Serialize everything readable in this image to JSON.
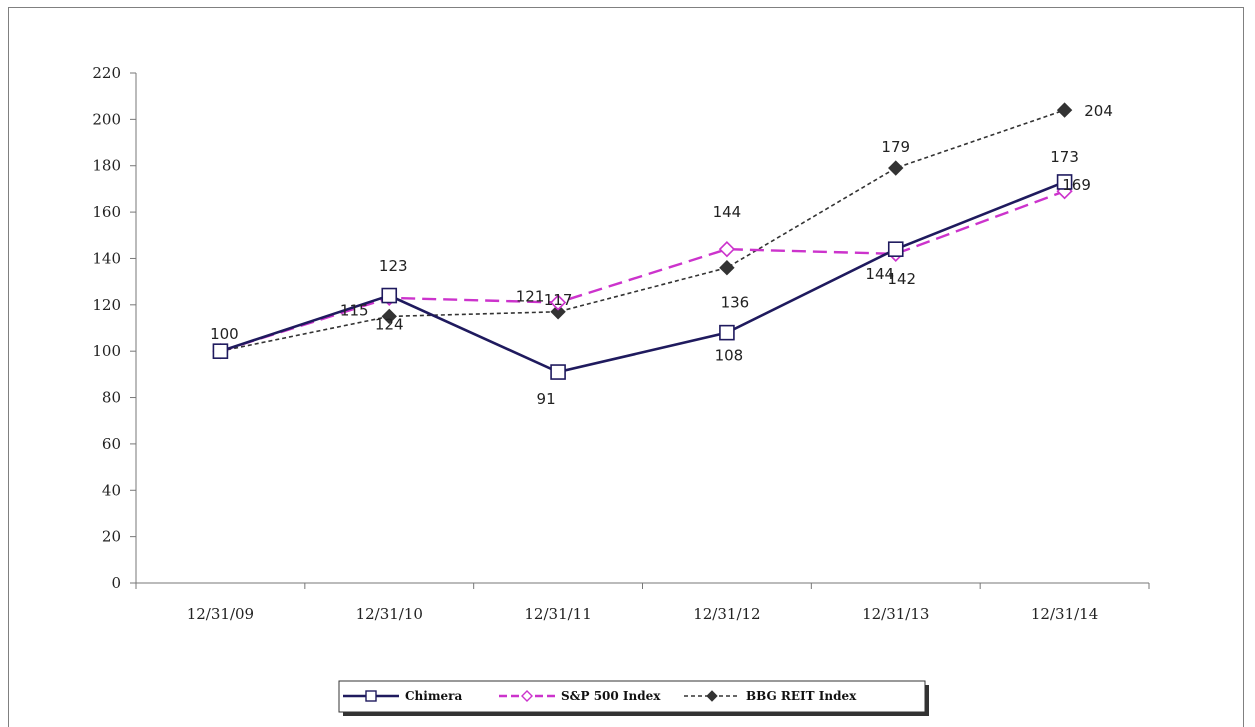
{
  "chart_data": {
    "type": "line",
    "title": "",
    "xlabel": "",
    "ylabel": "",
    "categories": [
      "12/31/09",
      "12/31/10",
      "12/31/11",
      "12/31/12",
      "12/31/13",
      "12/31/14"
    ],
    "ylim": [
      0,
      220
    ],
    "yticks": [
      0,
      20,
      40,
      60,
      80,
      100,
      120,
      140,
      160,
      180,
      200,
      220
    ],
    "grid": false,
    "legend_position": "bottom-center",
    "series": [
      {
        "name": "Chimera",
        "values": [
          100,
          124,
          91,
          108,
          144,
          173
        ],
        "labels": [
          "100",
          "124",
          "91",
          "108",
          "144",
          "173"
        ],
        "color": "#1f1a5e",
        "marker": "square",
        "dash": "solid"
      },
      {
        "name": "S&P 500 Index",
        "values": [
          100,
          123,
          121,
          144,
          142,
          169
        ],
        "labels": [
          "",
          "123",
          "121",
          "144",
          "142",
          "169"
        ],
        "color": "#cc33cc",
        "marker": "diamond-open",
        "dash": "dashed"
      },
      {
        "name": "BBG REIT Index",
        "values": [
          100,
          115,
          117,
          136,
          179,
          204
        ],
        "labels": [
          "",
          "115",
          "117",
          "136",
          "179",
          "204"
        ],
        "color": "#333333",
        "marker": "diamond-filled",
        "dash": "dotted"
      }
    ]
  }
}
